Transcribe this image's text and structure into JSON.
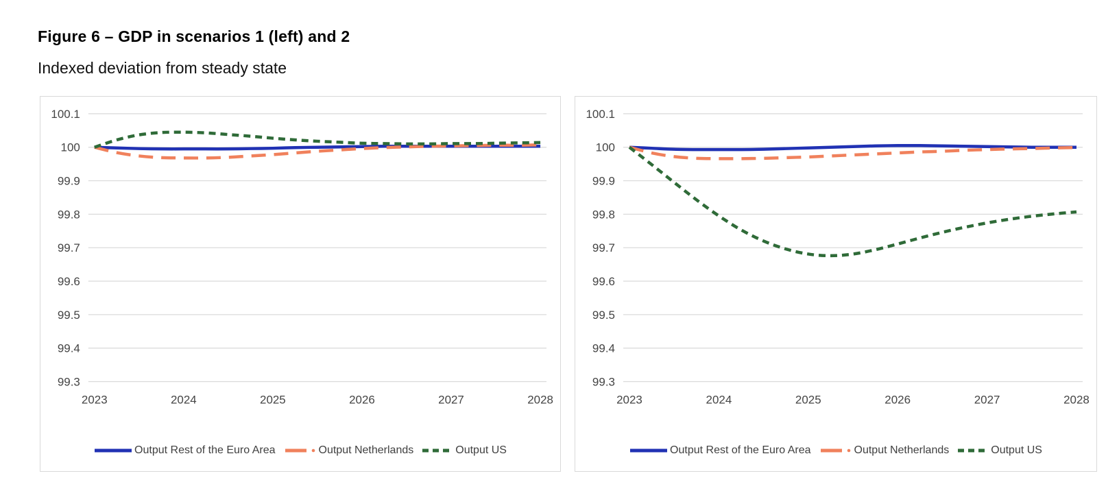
{
  "figure": {
    "title": "Figure 6 – GDP in scenarios 1 (left) and 2",
    "subtitle": "Indexed deviation from steady state"
  },
  "colors": {
    "euro_area_blue": "#2132b4",
    "netherlands_orange": "#f0815c",
    "us_green": "#2f6b38",
    "gridline": "#d9d9d9",
    "axis_text": "#444444",
    "panel_border": "#d9d9d9"
  },
  "chart_data": [
    {
      "type": "line",
      "panel": "left",
      "xlim": [
        2023,
        2028
      ],
      "ylim": [
        99.3,
        100.1
      ],
      "x_ticks": [
        "2023",
        "2024",
        "2025",
        "2026",
        "2027",
        "2028"
      ],
      "y_ticks": [
        "100.1",
        "100",
        "99.9",
        "99.8",
        "99.7",
        "99.6",
        "99.5",
        "99.4",
        "99.3"
      ],
      "grid": true,
      "legend_position": "bottom",
      "x": [
        2023,
        2023.25,
        2023.5,
        2023.75,
        2024,
        2024.25,
        2024.5,
        2024.75,
        2025,
        2025.25,
        2025.5,
        2025.75,
        2026,
        2026.25,
        2026.5,
        2026.75,
        2027,
        2027.25,
        2027.5,
        2027.75,
        2028
      ],
      "series": [
        {
          "name": "Output Rest of the Euro Area",
          "color": "#2132b4",
          "style": "solid",
          "values": [
            100.0,
            99.998,
            99.996,
            99.995,
            99.995,
            99.995,
            99.995,
            99.996,
            99.997,
            99.999,
            100.0,
            100.001,
            100.002,
            100.003,
            100.003,
            100.003,
            100.003,
            100.003,
            100.003,
            100.003,
            100.003
          ]
        },
        {
          "name": "Output Netherlands",
          "color": "#f0815c",
          "style": "long-dash",
          "values": [
            100.0,
            99.984,
            99.974,
            99.969,
            99.968,
            99.968,
            99.97,
            99.974,
            99.978,
            99.983,
            99.988,
            99.992,
            99.996,
            99.999,
            100.001,
            100.003,
            100.004,
            100.005,
            100.006,
            100.006,
            100.007
          ]
        },
        {
          "name": "Output US",
          "color": "#2f6b38",
          "style": "short-dash",
          "values": [
            100.0,
            100.022,
            100.037,
            100.044,
            100.045,
            100.043,
            100.038,
            100.033,
            100.027,
            100.022,
            100.018,
            100.015,
            100.012,
            100.011,
            100.01,
            100.01,
            100.011,
            100.011,
            100.012,
            100.013,
            100.014
          ]
        }
      ]
    },
    {
      "type": "line",
      "panel": "right",
      "xlim": [
        2023,
        2028
      ],
      "ylim": [
        99.3,
        100.1
      ],
      "x_ticks": [
        "2023",
        "2024",
        "2025",
        "2026",
        "2027",
        "2028"
      ],
      "y_ticks": [
        "100.1",
        "100",
        "99.9",
        "99.8",
        "99.7",
        "99.6",
        "99.5",
        "99.4",
        "99.3"
      ],
      "grid": true,
      "legend_position": "bottom",
      "x": [
        2023,
        2023.25,
        2023.5,
        2023.75,
        2024,
        2024.25,
        2024.5,
        2024.75,
        2025,
        2025.25,
        2025.5,
        2025.75,
        2026,
        2026.25,
        2026.5,
        2026.75,
        2027,
        2027.25,
        2027.5,
        2027.75,
        2028
      ],
      "series": [
        {
          "name": "Output Rest of the Euro Area",
          "color": "#2132b4",
          "style": "solid",
          "values": [
            100.0,
            99.997,
            99.994,
            99.993,
            99.993,
            99.993,
            99.994,
            99.996,
            99.998,
            100.0,
            100.002,
            100.004,
            100.005,
            100.005,
            100.004,
            100.003,
            100.002,
            100.001,
            100.0,
            100.0,
            100.0
          ]
        },
        {
          "name": "Output Netherlands",
          "color": "#f0815c",
          "style": "long-dash",
          "values": [
            100.0,
            99.983,
            99.972,
            99.967,
            99.966,
            99.966,
            99.967,
            99.969,
            99.971,
            99.974,
            99.977,
            99.98,
            99.983,
            99.986,
            99.988,
            99.991,
            99.993,
            99.995,
            99.996,
            99.998,
            99.999
          ]
        },
        {
          "name": "Output US",
          "color": "#2f6b38",
          "style": "short-dash",
          "values": [
            100.0,
            99.948,
            99.895,
            99.843,
            99.795,
            99.753,
            99.72,
            99.696,
            99.681,
            99.676,
            99.681,
            99.694,
            99.711,
            99.729,
            99.746,
            99.761,
            99.774,
            99.785,
            99.794,
            99.801,
            99.807
          ]
        }
      ]
    }
  ]
}
